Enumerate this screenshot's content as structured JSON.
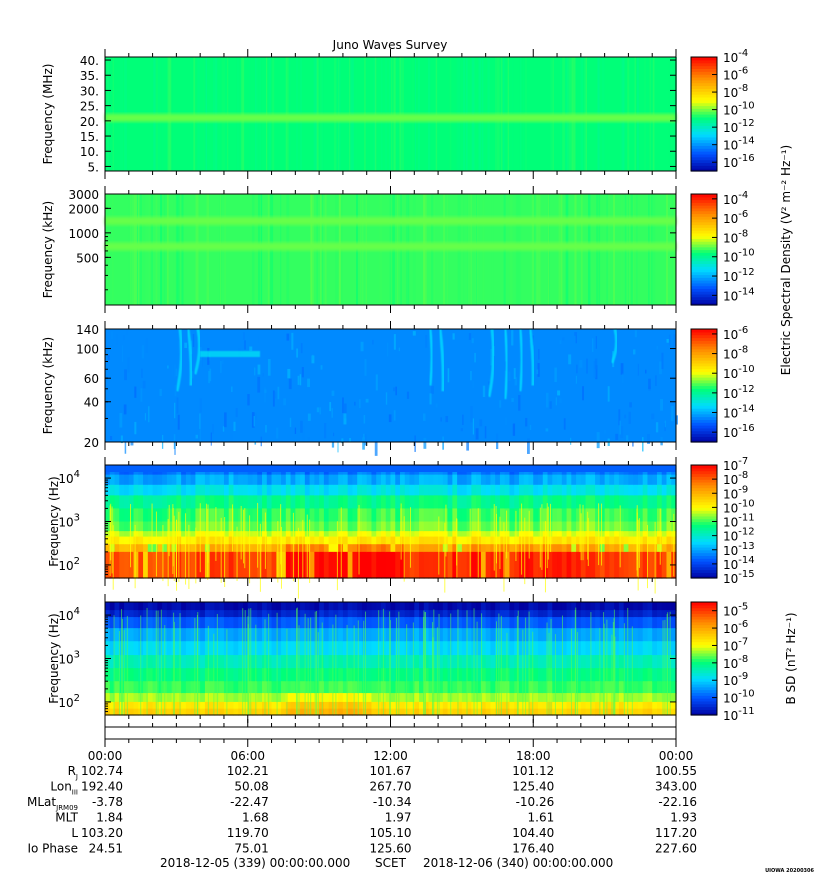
{
  "title": "Juno Waves Survey",
  "footer_stamp": "UIOWA 20200306",
  "chart_data": [
    {
      "type": "heatmap",
      "panel": "waves-hfr-high",
      "ylabel": "Frequency (MHz)",
      "yscale": "linear",
      "ylim": [
        3.5,
        41
      ],
      "yticks": [
        5,
        10,
        15,
        20,
        25,
        30,
        35,
        40
      ],
      "ytick_labels": [
        "5.",
        "10.",
        "15.",
        "20.",
        "25.",
        "30.",
        "35.",
        "40."
      ],
      "bands": [
        {
          "value": 21,
          "kind": "emission-band"
        }
      ],
      "colorbar": {
        "exponents": [
          -4,
          -6,
          -8,
          -10,
          -12,
          -14,
          -16
        ],
        "range_exp": [
          -17,
          -4
        ],
        "colors": [
          "#0000a0",
          "#0050ff",
          "#00e0ff",
          "#00ff70",
          "#ffff00",
          "#ff8c00",
          "#ff0000"
        ]
      },
      "field_level": 0.47
    },
    {
      "type": "heatmap",
      "panel": "waves-hfr-low",
      "ylabel": "Frequency (kHz)",
      "yscale": "log",
      "ylim": [
        130,
        3000
      ],
      "yticks": [
        500,
        1000,
        2000,
        3000
      ],
      "ytick_labels": [
        "500",
        "1000",
        "2000",
        "3000"
      ],
      "bands": [
        {
          "value": 1400,
          "kind": "emission-band"
        },
        {
          "value": 680,
          "kind": "emission-band"
        }
      ],
      "colorbar": {
        "exponents": [
          -4,
          -6,
          -8,
          -10,
          -12,
          -14
        ],
        "range_exp": [
          -15,
          -3.5
        ],
        "colors": [
          "#0000a0",
          "#0050ff",
          "#00e0ff",
          "#00ff70",
          "#ffff00",
          "#ff8c00",
          "#ff0000"
        ]
      },
      "field_level": 0.5
    },
    {
      "type": "heatmap",
      "panel": "waves-lfr-high",
      "ylabel": "Frequency (kHz)",
      "yscale": "log",
      "ylim": [
        20,
        140
      ],
      "yticks": [
        20,
        40,
        60,
        100,
        140
      ],
      "ytick_labels": [
        "20",
        "40",
        "60",
        "100",
        "140"
      ],
      "bands": [],
      "colorbar": {
        "exponents": [
          -6,
          -8,
          -10,
          -12,
          -14,
          -16
        ],
        "range_exp": [
          -17,
          -5.5
        ],
        "colors": [
          "#0000a0",
          "#0050ff",
          "#00e0ff",
          "#00ff70",
          "#ffff00",
          "#ff8c00",
          "#ff0000"
        ]
      },
      "field_level": 0.22
    },
    {
      "type": "heatmap",
      "panel": "waves-lfr-low",
      "ylabel": "Frequency (Hz)",
      "yscale": "log",
      "ylim": [
        50,
        20000
      ],
      "ytick_exponents": [
        2,
        3,
        4
      ],
      "bands": [],
      "colorbar": {
        "exponents": [
          -7,
          -8,
          -9,
          -10,
          -11,
          -12,
          -13,
          -14,
          -15
        ],
        "range_exp": [
          -15,
          -7
        ],
        "colors": [
          "#0000a0",
          "#0050ff",
          "#00e0ff",
          "#00ff70",
          "#ffff00",
          "#ff8c00",
          "#ff0000"
        ]
      }
    },
    {
      "type": "heatmap",
      "panel": "waves-magnetic",
      "ylabel": "Frequency (Hz)",
      "yscale": "log",
      "ylim": [
        50,
        20000
      ],
      "ytick_exponents": [
        2,
        3,
        4
      ],
      "bands": [],
      "colorbar": {
        "label": "B SD (nT² Hz⁻¹)",
        "exponents": [
          -5,
          -6,
          -7,
          -8,
          -9,
          -10,
          -11
        ],
        "range_exp": [
          -11,
          -4.5
        ],
        "colors": [
          "#0000a0",
          "#0050ff",
          "#00e0ff",
          "#00ff70",
          "#ffff00",
          "#ff8c00",
          "#ff0000"
        ]
      }
    }
  ],
  "shared_colorbar_label": "Electric Spectral Density (V² m⁻² Hz⁻¹)",
  "x_axis": {
    "tick_hours": [
      0,
      6,
      12,
      18,
      24
    ],
    "tick_labels": [
      "00:00",
      "06:00",
      "12:00",
      "18:00",
      "00:00"
    ],
    "range_hours": [
      0,
      24
    ]
  },
  "ephemeris": [
    {
      "label": "R",
      "sub": "J",
      "values": [
        "102.74",
        "102.21",
        "101.67",
        "101.12",
        "100.55"
      ]
    },
    {
      "label": "Lon",
      "sub": "III",
      "values": [
        "192.40",
        "50.08",
        "267.70",
        "125.40",
        "343.00"
      ]
    },
    {
      "label": "MLat",
      "sub": "JRM09",
      "values": [
        "-3.78",
        "-22.47",
        "-10.34",
        "-10.26",
        "-22.16"
      ]
    },
    {
      "label": "MLT",
      "sub": "",
      "values": [
        "1.84",
        "1.68",
        "1.97",
        "1.61",
        "1.93"
      ]
    },
    {
      "label": "L",
      "sub": "",
      "values": [
        "103.20",
        "119.70",
        "105.10",
        "104.40",
        "117.20"
      ]
    },
    {
      "label": "Io Phase",
      "sub": "",
      "values": [
        "24.51",
        "75.01",
        "125.60",
        "176.40",
        "227.60"
      ]
    }
  ],
  "time_range": {
    "start": "2018-12-05 (339) 00:00:00.000",
    "label": "SCET",
    "end": "2018-12-06 (340) 00:00:00.000"
  }
}
